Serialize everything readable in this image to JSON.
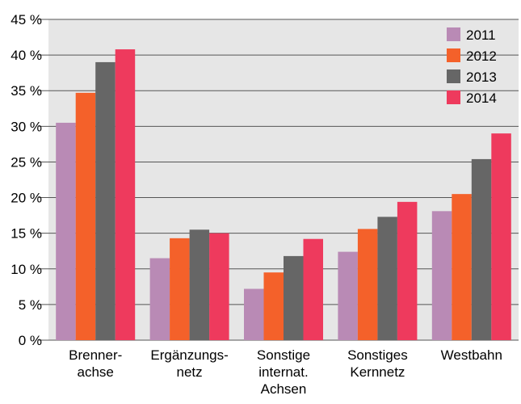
{
  "chart_data": {
    "type": "bar",
    "title": "",
    "xlabel": "",
    "ylabel": "",
    "categories": [
      [
        "Brenner-",
        "achse"
      ],
      [
        "Ergänzungs-",
        "netz"
      ],
      [
        "Sonstige",
        "internat.",
        "Achsen"
      ],
      [
        "Sonstiges",
        "Kernnetz"
      ],
      [
        "Westbahn"
      ]
    ],
    "series": [
      {
        "name": "2011",
        "color": "#b98ab5",
        "values": [
          30.5,
          11.5,
          7.2,
          12.4,
          18.1
        ]
      },
      {
        "name": "2012",
        "color": "#f4612a",
        "values": [
          34.7,
          14.3,
          9.5,
          15.6,
          20.5
        ]
      },
      {
        "name": "2013",
        "color": "#666666",
        "values": [
          39.0,
          15.5,
          11.8,
          17.3,
          25.4
        ]
      },
      {
        "name": "2014",
        "color": "#ee3a5d",
        "values": [
          40.8,
          15.0,
          14.2,
          19.4,
          29.0
        ]
      }
    ],
    "ylim": [
      0,
      45
    ],
    "yticks": [
      0,
      5,
      10,
      15,
      20,
      25,
      30,
      35,
      40,
      45
    ],
    "ytick_labels": [
      "0 %",
      "5 %",
      "10 %",
      "15 %",
      "20 %",
      "25 %",
      "30 %",
      "35 %",
      "40 %",
      "45 %"
    ],
    "grid": true,
    "legend": "top-right",
    "plot_background": "#e6e6e6"
  }
}
